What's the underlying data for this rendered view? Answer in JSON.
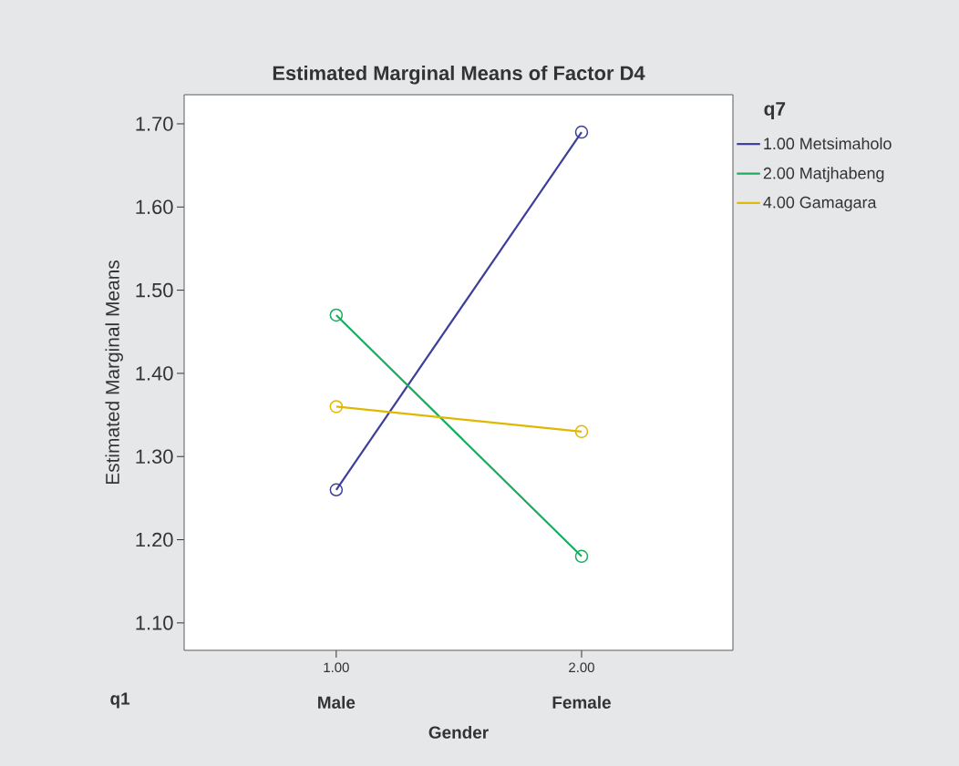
{
  "chart_data": {
    "type": "line",
    "title": "Estimated Marginal Means of Factor D4",
    "xlabel": "Gender",
    "ylabel": "Estimated Marginal Means",
    "legend_title": "q7",
    "categories": [
      "1.00",
      "2.00"
    ],
    "annotations": [
      "q1",
      "Male",
      "Female"
    ],
    "series": [
      {
        "name": "1.00 Metsimaholo",
        "color": "#3d3f9a",
        "values": [
          1.26,
          1.69
        ]
      },
      {
        "name": "2.00 Matjhabeng",
        "color": "#1aab5e",
        "values": [
          1.47,
          1.18
        ]
      },
      {
        "name": "4.00 Gamagara",
        "color": "#e0b800",
        "values": [
          1.36,
          1.33
        ]
      }
    ],
    "ylim": [
      1.067,
      1.735
    ],
    "yticks": [
      {
        "value": 1.1,
        "label": "1.10"
      },
      {
        "value": 1.2,
        "label": "1.20"
      },
      {
        "value": 1.3,
        "label": "1.30"
      },
      {
        "value": 1.4,
        "label": "1.40"
      },
      {
        "value": 1.5,
        "label": "1.50"
      },
      {
        "value": 1.6,
        "label": "1.60"
      },
      {
        "value": 1.7,
        "label": "1.70"
      }
    ],
    "grid": false,
    "legend": "right",
    "marker": "circle",
    "line_style": "solid"
  }
}
